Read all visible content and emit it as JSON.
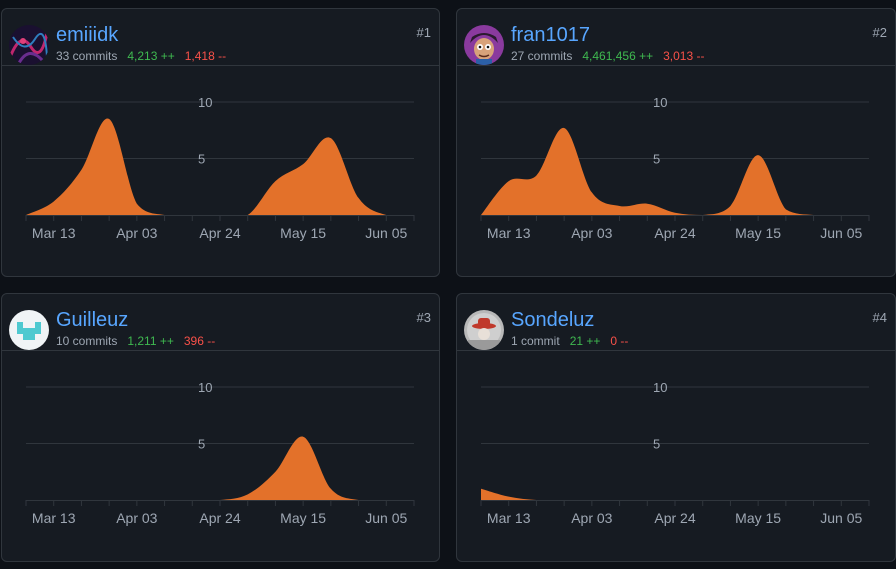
{
  "theme": {
    "area_color": "#e3712a",
    "link_color": "#58a6ff",
    "additions_color": "#3fb950",
    "deletions_color": "#f85149"
  },
  "contributors": [
    {
      "rank": "#1",
      "username": "emiiidk",
      "commits": "33 commits",
      "additions": "4,213 ++",
      "deletions": "1,418 --",
      "avatar_icon": "abstract-dark-avatar-icon"
    },
    {
      "rank": "#2",
      "username": "fran1017",
      "commits": "27 commits",
      "additions": "4,461,456 ++",
      "deletions": "3,013 --",
      "avatar_icon": "cartoon-character-avatar-icon"
    },
    {
      "rank": "#3",
      "username": "Guilleuz",
      "commits": "10 commits",
      "additions": "1,211 ++",
      "deletions": "396 --",
      "avatar_icon": "pixel-identicon-avatar-icon"
    },
    {
      "rank": "#4",
      "username": "Sondeluz",
      "commits": "1 commit",
      "additions": "21 ++",
      "deletions": "0 --",
      "avatar_icon": "grey-cowboy-avatar-icon"
    }
  ],
  "chart_data": [
    {
      "type": "area",
      "title": "",
      "x": [
        "Mar 06",
        "Mar 13",
        "Mar 20",
        "Mar 27",
        "Apr 03",
        "Apr 10",
        "Apr 17",
        "Apr 24",
        "May 01",
        "May 08",
        "May 15",
        "May 22",
        "May 29",
        "Jun 05",
        "Jun 12"
      ],
      "x_tick_labels": [
        "Mar 13",
        "Apr 03",
        "Apr 24",
        "May 15",
        "Jun 05"
      ],
      "y_ticks": [
        5,
        10
      ],
      "ylim": [
        0,
        10
      ],
      "series": [
        {
          "values": [
            0,
            1.2,
            4.0,
            8.5,
            1.0,
            0,
            0,
            0,
            0,
            3.0,
            4.5,
            6.8,
            1.5,
            0,
            0
          ]
        }
      ]
    },
    {
      "type": "area",
      "title": "",
      "x": [
        "Mar 06",
        "Mar 13",
        "Mar 20",
        "Mar 27",
        "Apr 03",
        "Apr 10",
        "Apr 17",
        "Apr 24",
        "May 01",
        "May 08",
        "May 15",
        "May 22",
        "May 29",
        "Jun 05",
        "Jun 12"
      ],
      "x_tick_labels": [
        "Mar 13",
        "Apr 03",
        "Apr 24",
        "May 15",
        "Jun 05"
      ],
      "y_ticks": [
        5,
        10
      ],
      "ylim": [
        0,
        10
      ],
      "series": [
        {
          "values": [
            0,
            3.0,
            3.5,
            7.7,
            2.0,
            0.8,
            1.0,
            0.2,
            0,
            0.8,
            5.3,
            0.5,
            0,
            0,
            0
          ]
        }
      ]
    },
    {
      "type": "area",
      "title": "",
      "x": [
        "Mar 06",
        "Mar 13",
        "Mar 20",
        "Mar 27",
        "Apr 03",
        "Apr 10",
        "Apr 17",
        "Apr 24",
        "May 01",
        "May 08",
        "May 15",
        "May 22",
        "May 29",
        "Jun 05",
        "Jun 12"
      ],
      "x_tick_labels": [
        "Mar 13",
        "Apr 03",
        "Apr 24",
        "May 15",
        "Jun 05"
      ],
      "y_ticks": [
        5,
        10
      ],
      "ylim": [
        0,
        10
      ],
      "series": [
        {
          "values": [
            0,
            0,
            0,
            0,
            0,
            0,
            0,
            0,
            0.5,
            2.5,
            5.6,
            1.0,
            0,
            0,
            0
          ]
        }
      ]
    },
    {
      "type": "area",
      "title": "",
      "x": [
        "Mar 06",
        "Mar 13",
        "Mar 20",
        "Mar 27",
        "Apr 03",
        "Apr 10",
        "Apr 17",
        "Apr 24",
        "May 01",
        "May 08",
        "May 15",
        "May 22",
        "May 29",
        "Jun 05",
        "Jun 12"
      ],
      "x_tick_labels": [
        "Mar 13",
        "Apr 03",
        "Apr 24",
        "May 15",
        "Jun 05"
      ],
      "y_ticks": [
        5,
        10
      ],
      "ylim": [
        0,
        10
      ],
      "series": [
        {
          "values": [
            1.0,
            0.3,
            0,
            0,
            0,
            0,
            0,
            0,
            0,
            0,
            0,
            0,
            0,
            0,
            0
          ]
        }
      ]
    }
  ]
}
